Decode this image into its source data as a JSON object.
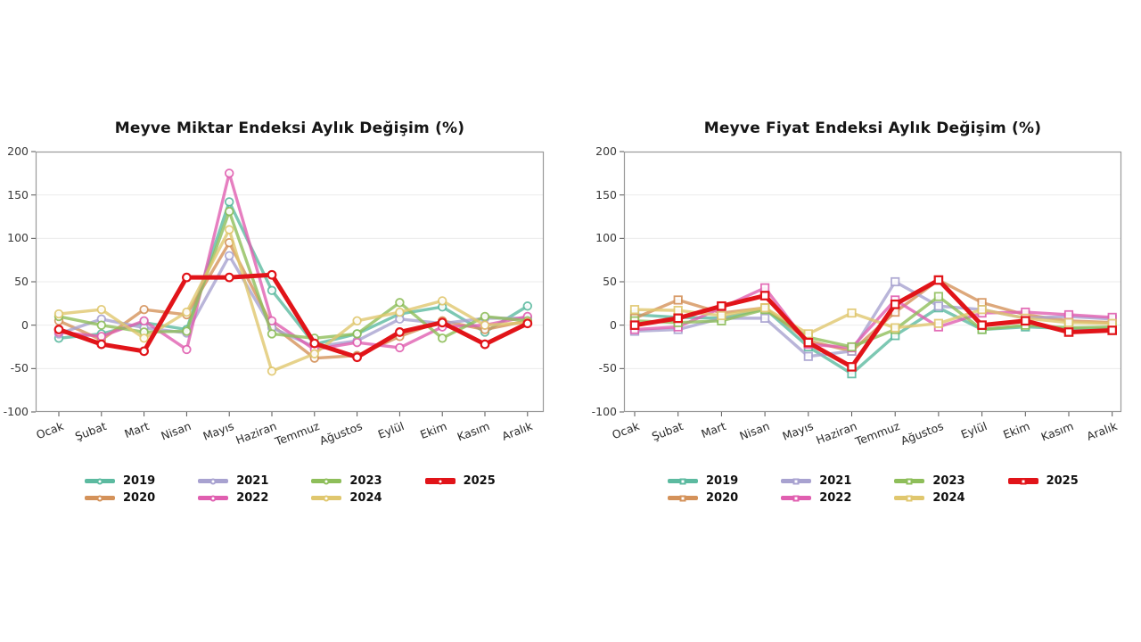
{
  "page_background": "#ffffff",
  "axis": {
    "y_tick_labels": [
      "200",
      "150",
      "100",
      "50",
      "0",
      "-50",
      "-100"
    ],
    "y_ticks": [
      200,
      150,
      100,
      50,
      0,
      -50,
      -100
    ],
    "ylim": [
      -100,
      200
    ],
    "grid": true,
    "spine_color": "#9a9a9a",
    "grid_color": "#ebebeb"
  },
  "months": [
    "Ocak",
    "Şubat",
    "Mart",
    "Nisan",
    "Mayıs",
    "Haziran",
    "Temmuz",
    "Ağustos",
    "Eylül",
    "Ekim",
    "Kasım",
    "Aralık"
  ],
  "legend": {
    "entries": [
      {
        "label": "2019",
        "color": "#5cbaa0"
      },
      {
        "label": "2020",
        "color": "#d4925a"
      },
      {
        "label": "2021",
        "color": "#a8a2d0"
      },
      {
        "label": "2022",
        "color": "#e05fb0"
      },
      {
        "label": "2023",
        "color": "#8ebe5a"
      },
      {
        "label": "2024",
        "color": "#e0c76e"
      },
      {
        "label": "2025",
        "color": "#e11419"
      }
    ],
    "columns": 4
  },
  "chart_data": [
    {
      "type": "line",
      "title": "Meyve Miktar Endeksi Aylık Değişim (%)",
      "xlabel": "",
      "ylabel": "",
      "ylim": [
        -100,
        200
      ],
      "marker": "circle",
      "legend_position": "below",
      "categories": [
        "Ocak",
        "Şubat",
        "Mart",
        "Nisan",
        "Mayıs",
        "Haziran",
        "Temmuz",
        "Ağustos",
        "Eylül",
        "Ekim",
        "Kasım",
        "Aralık"
      ],
      "series": [
        {
          "name": "2019",
          "color": "#5cbaa0",
          "values": [
            -15,
            -10,
            3,
            -5,
            142,
            40,
            -22,
            -10,
            13,
            21,
            -8,
            22
          ]
        },
        {
          "name": "2020",
          "color": "#d4925a",
          "values": [
            5,
            -17,
            18,
            12,
            95,
            0,
            -38,
            -35,
            -13,
            5,
            -5,
            5
          ]
        },
        {
          "name": "2021",
          "color": "#a8a2d0",
          "values": [
            -10,
            7,
            -3,
            -9,
            80,
            -3,
            -25,
            -18,
            7,
            2,
            8,
            8
          ]
        },
        {
          "name": "2022",
          "color": "#e05fb0",
          "values": [
            -8,
            -13,
            5,
            -28,
            175,
            5,
            -28,
            -20,
            -26,
            -2,
            0,
            10
          ]
        },
        {
          "name": "2023",
          "color": "#8ebe5a",
          "values": [
            10,
            0,
            -8,
            -7,
            131,
            -10,
            -15,
            -10,
            26,
            -15,
            10,
            5
          ]
        },
        {
          "name": "2024",
          "color": "#e0c76e",
          "values": [
            13,
            18,
            -15,
            15,
            110,
            -53,
            -33,
            5,
            15,
            28,
            0,
            3
          ]
        },
        {
          "name": "2025",
          "color": "#e11419",
          "values": [
            -5,
            -22,
            -30,
            55,
            55,
            58,
            -21,
            -37,
            -8,
            3,
            -22,
            2
          ]
        }
      ]
    },
    {
      "type": "line",
      "title": "Meyve Fiyat Endeksi Aylık Değişim (%)",
      "xlabel": "",
      "ylabel": "",
      "ylim": [
        -100,
        200
      ],
      "marker": "square",
      "legend_position": "below",
      "categories": [
        "Ocak",
        "Şubat",
        "Mart",
        "Nisan",
        "Mayıs",
        "Haziran",
        "Temmuz",
        "Ağustos",
        "Eylül",
        "Ekim",
        "Kasım",
        "Aralık"
      ],
      "series": [
        {
          "name": "2019",
          "color": "#5cbaa0",
          "values": [
            12,
            9,
            8,
            19,
            -25,
            -56,
            -12,
            20,
            -5,
            -2,
            -4,
            -4
          ]
        },
        {
          "name": "2020",
          "color": "#d4925a",
          "values": [
            8,
            29,
            14,
            20,
            -18,
            -30,
            15,
            52,
            26,
            12,
            5,
            3
          ]
        },
        {
          "name": "2021",
          "color": "#a8a2d0",
          "values": [
            -7,
            -5,
            8,
            8,
            -36,
            -30,
            50,
            22,
            18,
            8,
            10,
            7
          ]
        },
        {
          "name": "2022",
          "color": "#e05fb0",
          "values": [
            -5,
            -2,
            20,
            43,
            -22,
            -26,
            29,
            -2,
            14,
            15,
            12,
            9
          ]
        },
        {
          "name": "2023",
          "color": "#8ebe5a",
          "values": [
            5,
            3,
            5,
            18,
            -14,
            -25,
            -5,
            33,
            -5,
            0,
            -3,
            -2
          ]
        },
        {
          "name": "2024",
          "color": "#e0c76e",
          "values": [
            18,
            17,
            11,
            20,
            -10,
            14,
            -3,
            2,
            18,
            8,
            3,
            2
          ]
        },
        {
          "name": "2025",
          "color": "#e11419",
          "values": [
            0,
            8,
            22,
            34,
            -20,
            -48,
            24,
            52,
            0,
            5,
            -8,
            -6
          ]
        }
      ]
    }
  ]
}
